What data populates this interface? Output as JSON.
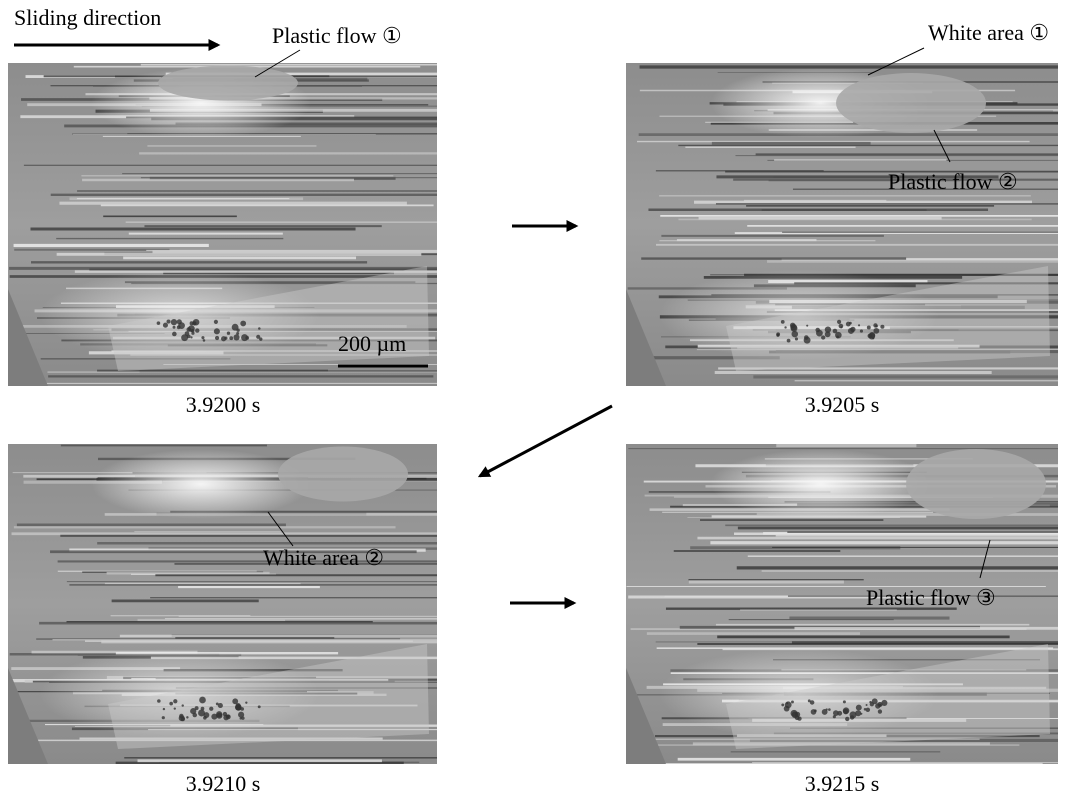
{
  "header": {
    "sliding_direction": "Sliding direction"
  },
  "panels": [
    {
      "caption": "3.9200 s",
      "annotations": [
        "Plastic flow ①"
      ],
      "scale_bar": "200 µm"
    },
    {
      "caption": "3.9205 s",
      "annotations": [
        "White area ①",
        "Plastic flow ②"
      ]
    },
    {
      "caption": "3.9210 s",
      "annotations": [
        "White area ②"
      ]
    },
    {
      "caption": "3.9215 s",
      "annotations": [
        "Plastic flow ③"
      ]
    }
  ]
}
